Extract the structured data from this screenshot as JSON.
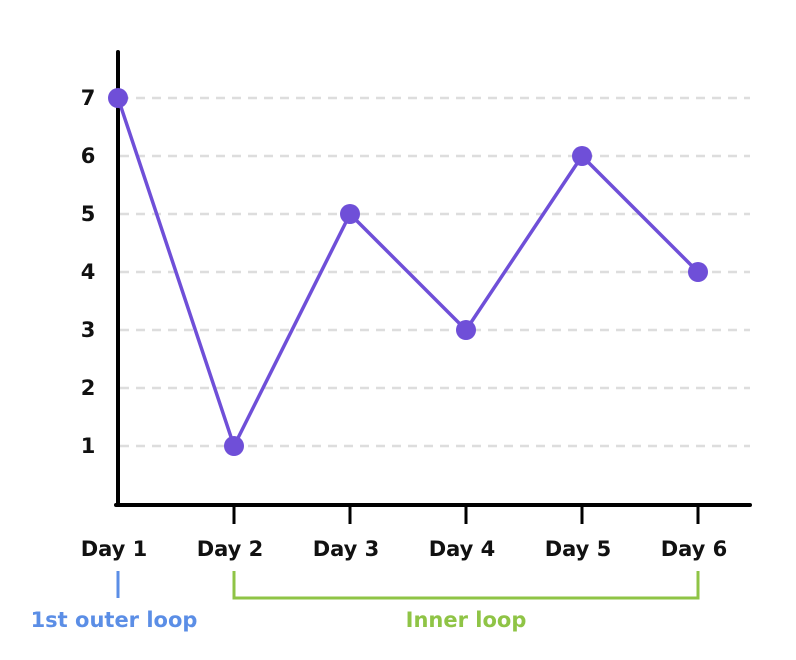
{
  "chart_data": {
    "type": "line",
    "title": "",
    "xlabel": "",
    "ylabel": "",
    "categories": [
      "Day 1",
      "Day 2",
      "Day 3",
      "Day 4",
      "Day 5",
      "Day 6"
    ],
    "series": [
      {
        "values": [
          7,
          1,
          5,
          3,
          6,
          4
        ],
        "color": "#6f4fd8"
      }
    ],
    "y_ticks": [
      1,
      2,
      3,
      4,
      5,
      6,
      7
    ],
    "ylim": [
      0,
      7
    ],
    "grid": true,
    "annotations": [
      {
        "label": "1st outer loop",
        "from": "Day 1",
        "to": "Day 1",
        "color": "#5b8ee6"
      },
      {
        "label": "Inner loop",
        "from": "Day 2",
        "to": "Day 6",
        "color": "#8fc446"
      }
    ]
  }
}
